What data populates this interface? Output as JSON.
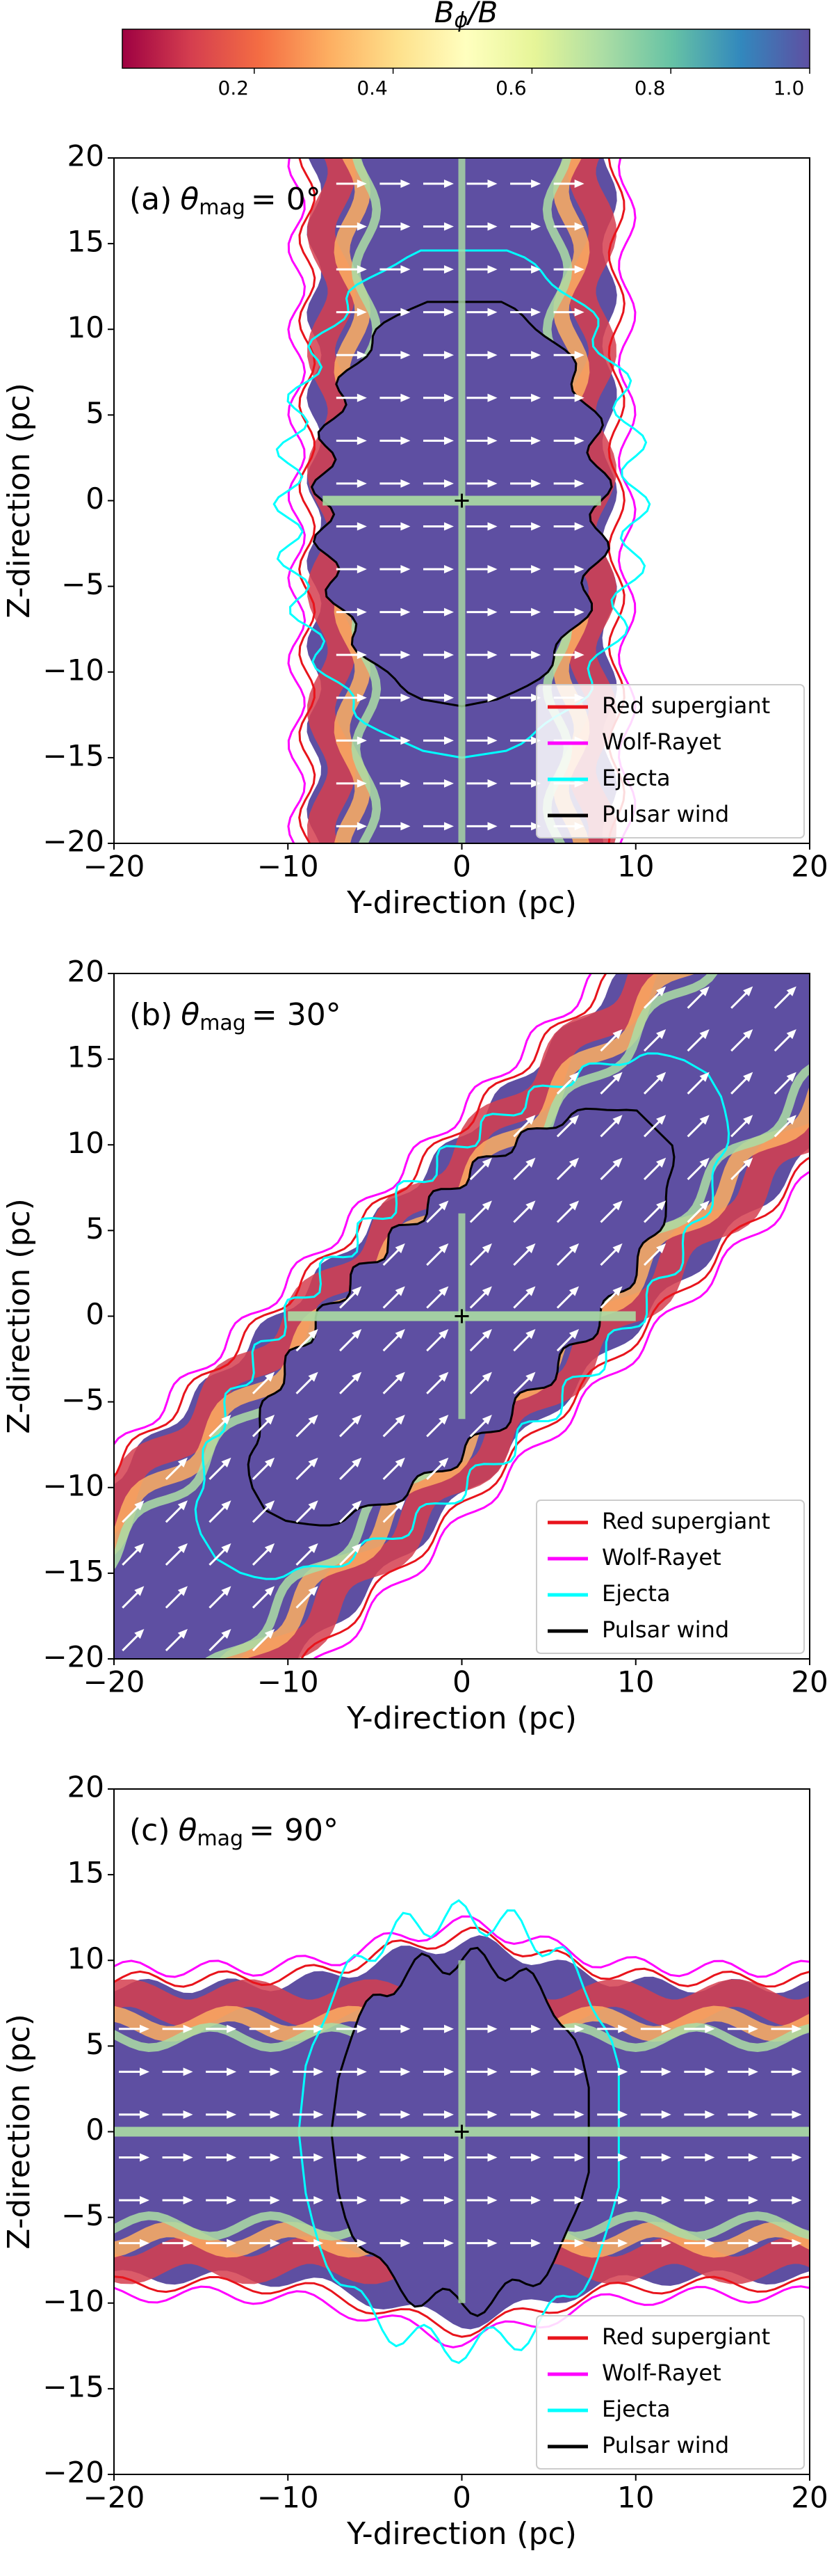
{
  "chart_data": [
    {
      "type": "colorbar",
      "label": {
        "symbol": "B",
        "subscript": "ϕ",
        "rest": "/B"
      },
      "clim": [
        0.01,
        1.0
      ],
      "ticks": [
        0.2,
        0.4,
        0.6,
        0.8,
        {
          "value": 1,
          "label": "1.0"
        }
      ],
      "colormap": [
        "#9e0142",
        "#d53e4f",
        "#f46d43",
        "#fdae61",
        "#fee08b",
        "#ffffbf",
        "#e6f598",
        "#abdda4",
        "#66c2a5",
        "#3288bd",
        "#5e4fa2"
      ]
    },
    {
      "type": "field-map",
      "title": {
        "label": "(a)",
        "symbol": "θ",
        "subscript": "mag",
        "rest": "= 0°"
      },
      "xlabel": "Y-direction (pc)",
      "ylabel": "Z-direction (pc)",
      "xlim": [
        -20,
        20
      ],
      "ylim": [
        -20,
        20
      ],
      "xticks": [
        {
          "value": -20,
          "label": "−20"
        },
        {
          "value": -10,
          "label": "−10"
        },
        0,
        10,
        20
      ],
      "yticks": [
        {
          "value": -20,
          "label": "−20"
        },
        {
          "value": -15,
          "label": "−15"
        },
        {
          "value": -10,
          "label": "−10"
        },
        {
          "value": -5,
          "label": "−5"
        },
        0,
        5,
        10,
        15,
        20
      ],
      "legend": "lower right",
      "series": [
        {
          "name": "Red supergiant",
          "color": "#e8141c"
        },
        {
          "name": "Wolf-Rayet",
          "color": "#ff00ff"
        },
        {
          "name": "Ejecta",
          "color": "#00ffff"
        },
        {
          "name": "Pulsar wind",
          "color": "#000000"
        }
      ]
    },
    {
      "type": "field-map",
      "title": {
        "label": "(b)",
        "symbol": "θ",
        "subscript": "mag",
        "rest": "= 30°"
      },
      "xlabel": "Y-direction (pc)",
      "ylabel": "Z-direction (pc)",
      "xlim": [
        -20,
        20
      ],
      "ylim": [
        -20,
        20
      ],
      "xticks": [
        {
          "value": -20,
          "label": "−20"
        },
        {
          "value": -10,
          "label": "−10"
        },
        0,
        10,
        20
      ],
      "yticks": [
        {
          "value": -20,
          "label": "−20"
        },
        {
          "value": -15,
          "label": "−15"
        },
        {
          "value": -10,
          "label": "−10"
        },
        {
          "value": -5,
          "label": "−5"
        },
        0,
        5,
        10,
        15,
        20
      ],
      "legend": "lower right",
      "series": [
        {
          "name": "Red supergiant",
          "color": "#e8141c"
        },
        {
          "name": "Wolf-Rayet",
          "color": "#ff00ff"
        },
        {
          "name": "Ejecta",
          "color": "#00ffff"
        },
        {
          "name": "Pulsar wind",
          "color": "#000000"
        }
      ]
    },
    {
      "type": "field-map",
      "title": {
        "label": "(c)",
        "symbol": "θ",
        "subscript": "mag",
        "rest": "= 90°"
      },
      "xlabel": "Y-direction (pc)",
      "ylabel": "Z-direction (pc)",
      "xlim": [
        -20,
        20
      ],
      "ylim": [
        -20,
        20
      ],
      "xticks": [
        {
          "value": -20,
          "label": "−20"
        },
        {
          "value": -10,
          "label": "−10"
        },
        0,
        10,
        20
      ],
      "yticks": [
        {
          "value": -20,
          "label": "−20"
        },
        {
          "value": -15,
          "label": "−15"
        },
        {
          "value": -10,
          "label": "−10"
        },
        {
          "value": -5,
          "label": "−5"
        },
        0,
        5,
        10,
        15,
        20
      ],
      "legend": "lower right",
      "series": [
        {
          "name": "Red supergiant",
          "color": "#e8141c"
        },
        {
          "name": "Wolf-Rayet",
          "color": "#ff00ff"
        },
        {
          "name": "Ejecta",
          "color": "#00ffff"
        },
        {
          "name": "Pulsar wind",
          "color": "#000000"
        }
      ]
    }
  ]
}
